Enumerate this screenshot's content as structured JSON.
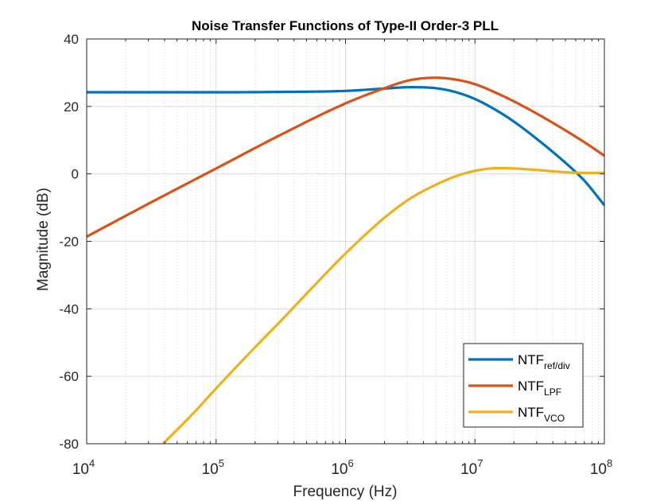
{
  "chart_data": {
    "type": "line",
    "title": "Noise Transfer Functions of Type-II Order-3 PLL",
    "xlabel": "Frequency (Hz)",
    "ylabel": "Magnitude (dB)",
    "xscale": "log",
    "xlim": [
      10000,
      100000000
    ],
    "ylim": [
      -80,
      40
    ],
    "grid": true,
    "minor_grid_x": true,
    "legend_position": "bottom-right",
    "x_ticks": [
      {
        "base": "10",
        "exp": "4",
        "value": 10000
      },
      {
        "base": "10",
        "exp": "5",
        "value": 100000
      },
      {
        "base": "10",
        "exp": "6",
        "value": 1000000
      },
      {
        "base": "10",
        "exp": "7",
        "value": 10000000
      },
      {
        "base": "10",
        "exp": "8",
        "value": 100000000
      }
    ],
    "y_ticks": [
      {
        "label": "40",
        "value": 40
      },
      {
        "label": "20",
        "value": 20
      },
      {
        "label": "0",
        "value": 0
      },
      {
        "label": "-20",
        "value": -20
      },
      {
        "label": "-40",
        "value": -40
      },
      {
        "label": "-60",
        "value": -60
      },
      {
        "label": "-80",
        "value": -80
      }
    ],
    "series": [
      {
        "name": "NTF",
        "subscript": "ref/div",
        "color": "#0072BD",
        "x": [
          10000,
          31600,
          100000,
          316000,
          1000000,
          2000000,
          3160000,
          5000000,
          7000000,
          10000000,
          15000000,
          20000000,
          31600000,
          50000000,
          70000000,
          100000000
        ],
        "y": [
          24.2,
          24.2,
          24.2,
          24.3,
          24.6,
          25.3,
          25.7,
          25.4,
          24.3,
          22.2,
          18.6,
          15.5,
          9.7,
          3.3,
          -2.0,
          -9.3
        ]
      },
      {
        "name": "NTF",
        "subscript": "LPF",
        "color": "#D95319",
        "x": [
          10000,
          31600,
          100000,
          316000,
          1000000,
          2000000,
          3160000,
          5000000,
          7000000,
          10000000,
          15000000,
          20000000,
          31600000,
          50000000,
          70000000,
          100000000
        ],
        "y": [
          -18.6,
          -8.4,
          1.6,
          11.6,
          20.9,
          25.4,
          27.8,
          28.5,
          28.0,
          26.6,
          23.8,
          21.5,
          17.4,
          12.9,
          9.4,
          5.4
        ]
      },
      {
        "name": "NTF",
        "subscript": "VCO",
        "color": "#EDB120",
        "x": [
          39000,
          70000,
          100000,
          200000,
          316000,
          500000,
          1000000,
          2000000,
          3160000,
          5000000,
          7000000,
          10000000,
          15000000,
          20000000,
          31600000,
          50000000,
          70000000,
          100000000
        ],
        "y": [
          -80,
          -70.1,
          -63.6,
          -51.4,
          -43.6,
          -35.5,
          -23.6,
          -13.0,
          -7.3,
          -3.2,
          -0.8,
          0.9,
          1.7,
          1.6,
          1.1,
          0.5,
          0.3,
          0.3
        ]
      }
    ]
  }
}
